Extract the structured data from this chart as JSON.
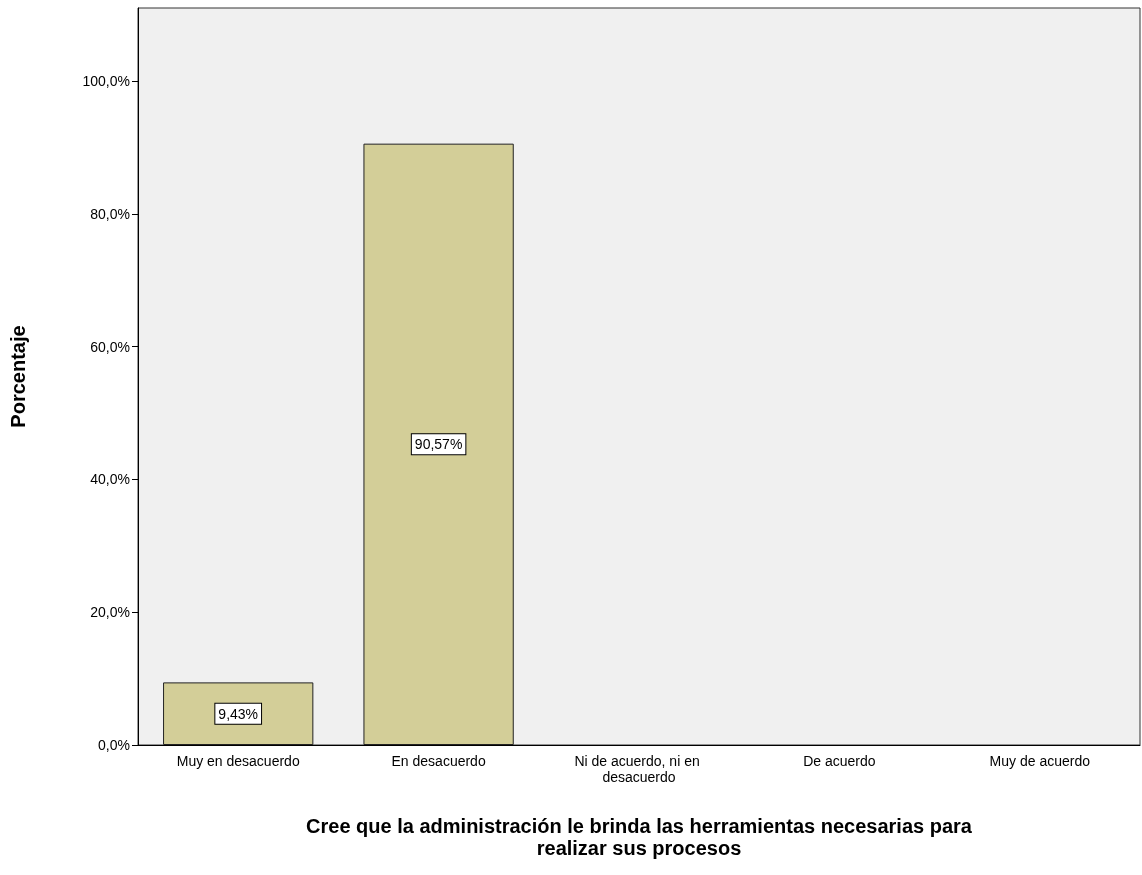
{
  "chart_data": {
    "type": "bar",
    "xlabel": "Cree que la administración le brinda las herramientas necesarias para realizar sus procesos",
    "ylabel": "Porcentaje",
    "categories": [
      "Muy en desacuerdo",
      "En desacuerdo",
      "Ni de acuerdo, ni en desacuerdo",
      "De acuerdo",
      "Muy de acuerdo"
    ],
    "values": [
      9.43,
      90.57,
      0,
      0,
      0
    ],
    "value_labels": [
      "9,43%",
      "90,57%",
      null,
      null,
      null
    ],
    "color": "#d3ce98",
    "ylim": [
      0,
      111
    ],
    "yticks": [
      {
        "value": 0,
        "label": "0,0%"
      },
      {
        "value": 20,
        "label": "20,0%"
      },
      {
        "value": 40,
        "label": "40,0%"
      },
      {
        "value": 60,
        "label": "60,0%"
      },
      {
        "value": 80,
        "label": "80,0%"
      },
      {
        "value": 100,
        "label": "100,0%"
      }
    ],
    "grid": false
  }
}
